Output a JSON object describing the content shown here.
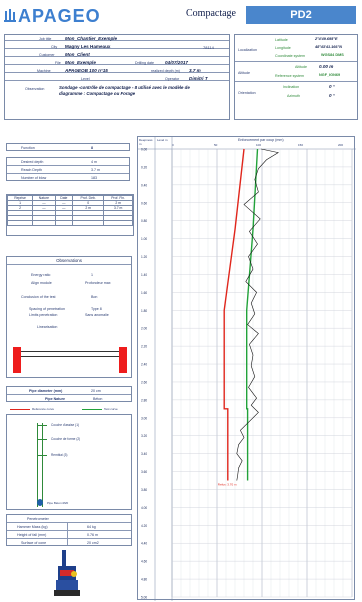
{
  "header": {
    "brand": "APAGEO",
    "test_type": "Compactage",
    "probe_id": "PD2",
    "brand_color": "#3d7fcf",
    "badge_color": "#4a86cc"
  },
  "site": {
    "job_label": "Job title",
    "job": "Mon_Chantier_Exemple",
    "city_label": "City",
    "city": "Magny Les Hameaux",
    "postcode": "78114",
    "client_label": "Customer",
    "client": "Mon_Client",
    "file_label": "File",
    "file": "Mon_Exemple",
    "date_label": "Drilling date",
    "date": "04/07/2017",
    "rig_label": "Machine",
    "rig": "APAGEOB 100 n°15",
    "depth_label": "realized depth (m)",
    "depth": "3.7 m",
    "level_label": "Level",
    "operator_label": "Operator",
    "operator": "Dimitri T",
    "obs_label": "Observation",
    "obs": "Sondage -contrôle de compactage - 8 utilisé avec le modèle de diagramme : Compactage ou Forage"
  },
  "location": {
    "loc_label": "Localization",
    "lat_label": "Latitude",
    "lat": "2°4'49.695\"E",
    "lon_label": "Longitude",
    "lon": "48°43'41.166\"N",
    "x_label": "Coordinate system",
    "x": "WGS84 DMS",
    "alt_label": "Altitude",
    "alt": "0.00 m",
    "ref_label": "Reference system",
    "ref": "NGF_IGN69",
    "orient_label": "Orientation",
    "incl_label": "Inclination",
    "incl": "0 °",
    "az_label": "Azimuth",
    "az": "0 °"
  },
  "params": {
    "function_label": "Function",
    "function": "8",
    "desired_label": "Desired depth",
    "desired": "4 m",
    "reach_label": "Reach Depth",
    "reach": "3.7 m",
    "blows_label": "Number of blow",
    "blows": "183"
  },
  "layers_table": {
    "headers": [
      "Reprise",
      "Nature",
      "Date",
      "Prof. Deb.",
      "Prof. Fin."
    ],
    "rows": [
      [
        "1",
        "—",
        "—",
        "0",
        "2 m"
      ],
      [
        "2",
        "—",
        "—",
        "2 m",
        "3.7 m"
      ],
      [
        "",
        "",
        "",
        "",
        ""
      ],
      [
        "",
        "",
        "",
        "",
        ""
      ]
    ]
  },
  "observations": {
    "title": "Observations",
    "rows": [
      [
        "Energy ratio",
        "1"
      ],
      [
        "Align module",
        "Profondeur max"
      ],
      [
        "Conclusion of the test",
        "Bon"
      ],
      [
        "Spacing of penetration",
        "Type 8"
      ],
      [
        "Limits penetration",
        "Sans anomalie"
      ],
      [
        "Linearisation",
        ""
      ]
    ]
  },
  "pipe": {
    "diameter_label": "Pipe diameter (mm)",
    "diameter": "20 cm",
    "nature_label": "Pipe Nature",
    "nature": "Béton"
  },
  "legend": {
    "ref_label": "Reference curve",
    "test_label": "Test curve",
    "layers": [
      "Couche d'assise (1)",
      "Couche de forme (2)",
      "Remblai (3)"
    ],
    "pipe_label": "Pipe Béton Ø20"
  },
  "hammer": {
    "title": "Penetrometer",
    "rows": [
      [
        "Hammer Mass (kg)",
        "64 kg"
      ],
      [
        "Height of fall (mm)",
        "0.76 m"
      ],
      [
        "Surface of cone",
        "20 cm2"
      ]
    ]
  },
  "chart_head": {
    "depth_col": "Deepness m",
    "level_col": "Level m",
    "title": "Enfoncement par coup (mm)",
    "ticks": [
      "0",
      "50",
      "100",
      "150",
      "200"
    ]
  },
  "chart_data": {
    "type": "line",
    "title": "Enfoncement par coup (mm)",
    "xlabel": "Enfoncement par coup (mm)",
    "ylabel": "Deepness m",
    "y_ticks": [
      "0.00",
      "0.20",
      "0.40",
      "0.60",
      "0.80",
      "1.00",
      "1.20",
      "1.40",
      "1.60",
      "1.80",
      "2.00",
      "2.20",
      "2.40",
      "2.60",
      "2.80",
      "3.00",
      "3.20",
      "3.40",
      "3.60",
      "3.80",
      "4.00",
      "4.20",
      "4.40",
      "4.60",
      "4.80",
      "5.00"
    ],
    "ylim": [
      0,
      5
    ],
    "xlim": [
      0,
      200
    ],
    "annotation": "Refus: 3.70 m",
    "series": [
      {
        "name": "Reference curve",
        "color": "#e0261c",
        "x": [
          80,
          70,
          58,
          58,
          62,
          62
        ],
        "y": [
          0.0,
          0.9,
          1.8,
          2.9,
          2.9,
          3.7
        ]
      },
      {
        "name": "Limit curve",
        "color": "#22a23a",
        "x": [
          95,
          90,
          83,
          83,
          84,
          84
        ],
        "y": [
          0.0,
          0.9,
          1.8,
          2.9,
          2.9,
          3.7
        ]
      },
      {
        "name": "Test curve",
        "color": "#111111",
        "x": [
          99,
          118,
          105,
          96,
          92,
          96,
          80,
          98,
          86,
          95,
          85,
          90,
          82,
          94,
          88,
          92,
          84,
          96,
          86,
          90,
          88,
          92,
          85,
          94,
          88,
          96,
          90,
          84,
          76,
          80,
          74,
          72,
          78,
          74,
          73,
          72
        ],
        "y": [
          0.0,
          0.04,
          0.12,
          0.22,
          0.34,
          0.48,
          0.62,
          0.78,
          0.92,
          1.06,
          1.2,
          1.34,
          1.48,
          1.6,
          1.72,
          1.84,
          1.96,
          2.06,
          2.18,
          2.3,
          2.42,
          2.54,
          2.66,
          2.78,
          2.86,
          2.94,
          3.0,
          3.06,
          3.14,
          3.22,
          3.3,
          3.4,
          3.48,
          3.56,
          3.64,
          3.7
        ]
      }
    ]
  }
}
